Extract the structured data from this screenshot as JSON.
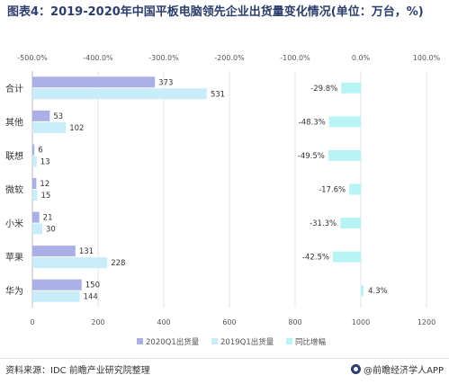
{
  "title": "图表4：2019-2020年中国平板电脑领先企业出货量变化情况(单位：万台，%)",
  "chart_data": {
    "type": "bar",
    "orientation": "horizontal",
    "categories": [
      "合计",
      "其他",
      "联想",
      "微软",
      "小米",
      "苹果",
      "华为"
    ],
    "series": [
      {
        "name": "2020Q1出货量",
        "values": [
          373,
          53,
          6,
          12,
          21,
          131,
          150
        ],
        "color": "#aab0e6"
      },
      {
        "name": "2019Q1出货量",
        "values": [
          531,
          102,
          13,
          15,
          30,
          228,
          144
        ],
        "color": "#c9ecfb"
      },
      {
        "name": "同比增幅",
        "values": [
          -29.8,
          -48.3,
          -49.5,
          -17.6,
          -31.3,
          -42.5,
          4.3
        ],
        "color": "#b8f3f5"
      }
    ],
    "value_labels": [
      "373",
      "531",
      "53",
      "102",
      "6",
      "13",
      "12",
      "15",
      "21",
      "30",
      "131",
      "228",
      "150",
      "144"
    ],
    "pct_labels": [
      "-29.8%",
      "-48.3%",
      "-49.5%",
      "-17.6%",
      "-31.3%",
      "-42.5%",
      "4.3%"
    ],
    "x_bottom": {
      "ticks": [
        0,
        200,
        400,
        600,
        800,
        1000,
        1200
      ],
      "range": [
        0,
        1200
      ]
    },
    "x_top": {
      "ticks": [
        "-500.0%",
        "-400.0%",
        "-300.0%",
        "-200.0%",
        "-100.0%",
        "0.0%",
        "100.0%"
      ],
      "range": [
        -500,
        100
      ]
    },
    "legend_position": "bottom"
  },
  "footer": {
    "source": "资料来源：IDC 前瞻产业研究院整理",
    "brand": "@前瞻经济学人APP"
  }
}
